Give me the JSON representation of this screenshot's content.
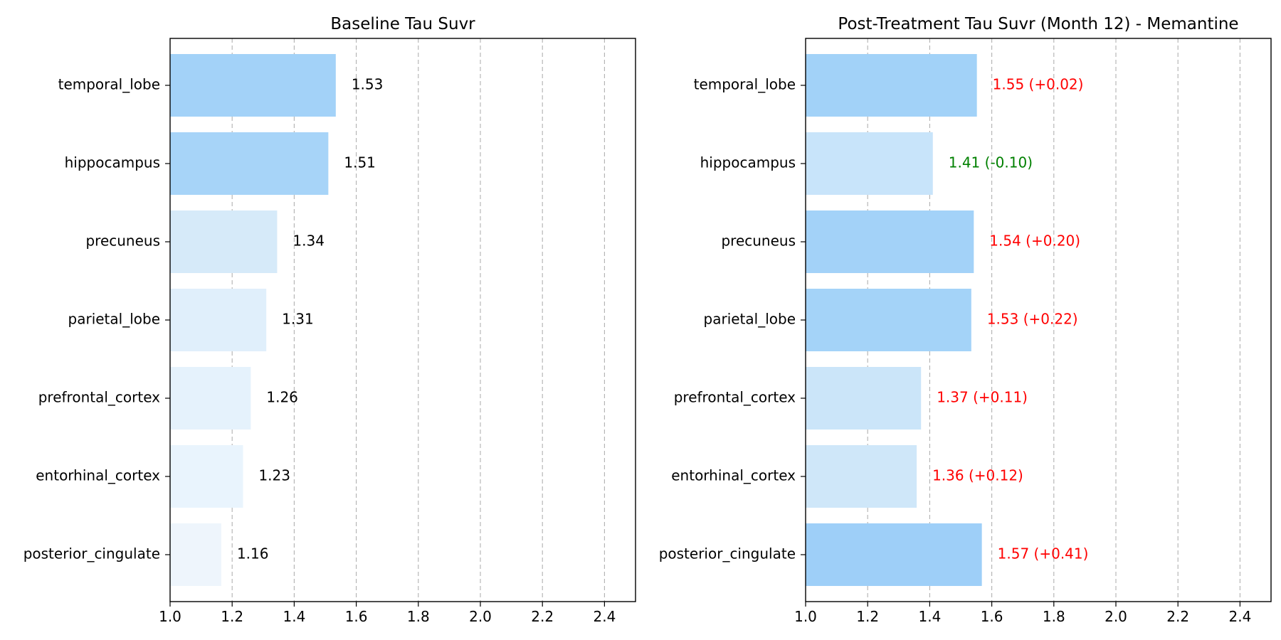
{
  "chart_data": [
    {
      "type": "bar",
      "orientation": "horizontal",
      "title": "Baseline Tau Suvr",
      "xlabel": "",
      "ylabel": "",
      "xlim": [
        1.0,
        2.5
      ],
      "xticks": [
        "1.0",
        "1.2",
        "1.4",
        "1.6",
        "1.8",
        "2.0",
        "2.2",
        "2.4"
      ],
      "grid": "x-dashed",
      "categories": [
        "temporal_lobe",
        "hippocampus",
        "precuneus",
        "parietal_lobe",
        "prefrontal_cortex",
        "entorhinal_cortex",
        "posterior_cingulate"
      ],
      "values": [
        1.534,
        1.51,
        1.345,
        1.31,
        1.26,
        1.235,
        1.165
      ],
      "labels": [
        "1.53",
        "1.51",
        "1.34",
        "1.31",
        "1.26",
        "1.23",
        "1.16"
      ],
      "label_colors": [
        "#000000",
        "#000000",
        "#000000",
        "#000000",
        "#000000",
        "#000000",
        "#000000"
      ],
      "bar_colors": [
        "#a3d2f8",
        "#a7d4f8",
        "#d6eaf9",
        "#e0effb",
        "#e5f2fc",
        "#e9f4fd",
        "#eef5fc"
      ]
    },
    {
      "type": "bar",
      "orientation": "horizontal",
      "title": "Post-Treatment Tau Suvr (Month 12) - Memantine",
      "xlabel": "",
      "ylabel": "",
      "xlim": [
        1.0,
        2.5
      ],
      "xticks": [
        "1.0",
        "1.2",
        "1.4",
        "1.6",
        "1.8",
        "2.0",
        "2.2",
        "2.4"
      ],
      "grid": "x-dashed",
      "categories": [
        "temporal_lobe",
        "hippocampus",
        "precuneus",
        "parietal_lobe",
        "prefrontal_cortex",
        "entorhinal_cortex",
        "posterior_cingulate"
      ],
      "values": [
        1.552,
        1.41,
        1.542,
        1.534,
        1.372,
        1.358,
        1.568
      ],
      "labels": [
        "1.55 (+0.02)",
        "1.41 (-0.10)",
        "1.54 (+0.20)",
        "1.53 (+0.22)",
        "1.37 (+0.11)",
        "1.36 (+0.12)",
        "1.57 (+0.41)"
      ],
      "label_colors": [
        "#ff0000",
        "#008000",
        "#ff0000",
        "#ff0000",
        "#ff0000",
        "#ff0000",
        "#ff0000"
      ],
      "bar_colors": [
        "#a2d2f8",
        "#c8e4fa",
        "#a3d2f8",
        "#a4d3f8",
        "#cbe5f9",
        "#cfe7f9",
        "#9ecff8"
      ]
    }
  ]
}
